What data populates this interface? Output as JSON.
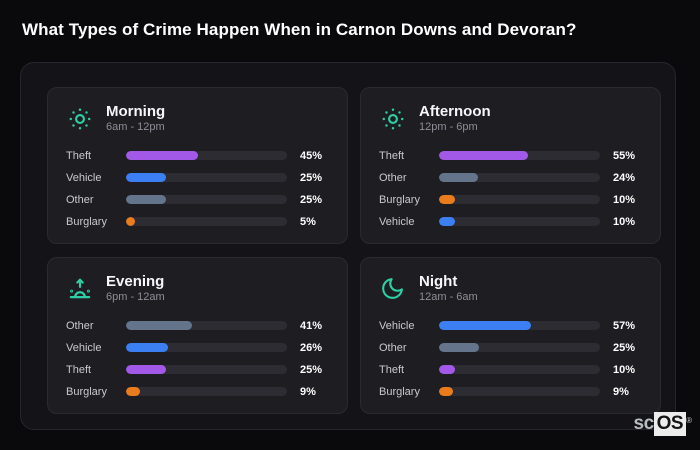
{
  "page_title": "What Types of Crime Happen When in Carnon Downs and Devoran?",
  "colors": {
    "theft": "#a259e8",
    "vehicle": "#3b7ff2",
    "other": "#64748b",
    "burglary": "#e97d1e",
    "icon_accent": "#2dcfa4",
    "track": "#2c2c32",
    "panel_bg": "#141418",
    "card_bg": "#1d1d22",
    "page_bg": "#0a0a0d"
  },
  "watermark": {
    "prefix": "sc",
    "suffix": "OS",
    "registered": "®"
  },
  "chart_data": [
    {
      "type": "bar",
      "orientation": "horizontal",
      "title": "Morning",
      "subtitle": "6am - 12pm",
      "icon": "sun-icon",
      "categories": [
        "Theft",
        "Vehicle",
        "Other",
        "Burglary"
      ],
      "values": [
        45,
        25,
        25,
        5
      ],
      "unit": "%",
      "xlim": [
        0,
        100
      ],
      "grid": false,
      "legend": false
    },
    {
      "type": "bar",
      "orientation": "horizontal",
      "title": "Afternoon",
      "subtitle": "12pm - 6pm",
      "icon": "sun-icon",
      "categories": [
        "Theft",
        "Other",
        "Burglary",
        "Vehicle"
      ],
      "values": [
        55,
        24,
        10,
        10
      ],
      "unit": "%",
      "xlim": [
        0,
        100
      ],
      "grid": false,
      "legend": false
    },
    {
      "type": "bar",
      "orientation": "horizontal",
      "title": "Evening",
      "subtitle": "6pm - 12am",
      "icon": "sunrise-icon",
      "categories": [
        "Other",
        "Vehicle",
        "Theft",
        "Burglary"
      ],
      "values": [
        41,
        26,
        25,
        9
      ],
      "unit": "%",
      "xlim": [
        0,
        100
      ],
      "grid": false,
      "legend": false
    },
    {
      "type": "bar",
      "orientation": "horizontal",
      "title": "Night",
      "subtitle": "12am - 6am",
      "icon": "moon-icon",
      "categories": [
        "Vehicle",
        "Other",
        "Theft",
        "Burglary"
      ],
      "values": [
        57,
        25,
        10,
        9
      ],
      "unit": "%",
      "xlim": [
        0,
        100
      ],
      "grid": false,
      "legend": false
    }
  ]
}
